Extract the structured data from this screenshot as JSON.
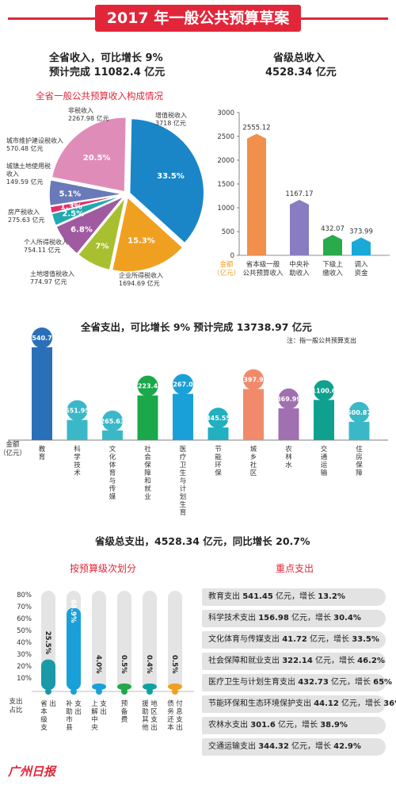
{
  "title": "2017 年一般公共预算草案",
  "income": {
    "line1": "全省收入，可比增长 9%",
    "line2": "预计完成 11082.4 亿元",
    "prov_line1": "省级总收入",
    "prov_line2": "4528.34 亿元"
  },
  "pie_title": "全省一般公共预算收入构成情况",
  "bar1_unit": [
    "金额",
    "（亿元）"
  ],
  "bar2_title": "全省支出，可比增长 9%    预计完成 13738.97 亿元",
  "bar2_note": "注：指一般公共预算支出",
  "bar2_unit": [
    "金额",
    "（亿元）"
  ],
  "prov_exp_title": "省级总支出，4528.34 亿元，同比增长 20.7%",
  "level_title": "按预算级次划分",
  "key_title": "重点支出",
  "level_unit": [
    "支出",
    "占比"
  ],
  "logo": "广州日报",
  "chart_data": [
    {
      "type": "pie",
      "title": "全省一般公共预算收入构成情况",
      "slices": [
        {
          "name": "增值税收入",
          "value": 3718,
          "pct": "33.5%",
          "color": "#1a86c8"
        },
        {
          "name": "企业所得税收入",
          "value": 1694.69,
          "pct": "15.3%",
          "color": "#f0a020"
        },
        {
          "name": "土地增值税收入",
          "value": 774.97,
          "pct": "7%",
          "color": "#a8c030"
        },
        {
          "name": "个人所得税收入",
          "value": 754.11,
          "pct": "6.8%",
          "color": "#a05aa0"
        },
        {
          "name": "房产税收入",
          "value": 275.63,
          "pct": "2.5%",
          "color": "#20aab0"
        },
        {
          "name": "城镇土地使用税收入",
          "value": 149.59,
          "pct": "1.3%",
          "color": "#e0306a"
        },
        {
          "name": "城市维护建设税收入",
          "value": 570.48,
          "pct": "5.1%",
          "color": "#6a7ab8"
        },
        {
          "name": "非税收入",
          "value": 2267.98,
          "pct": "20.5%",
          "color": "#e08cb8"
        }
      ],
      "labels": [
        {
          "line1": "增值税收入",
          "line2": "3718 亿元"
        },
        {
          "line1": "企业所得税收入",
          "line2": "1694.69 亿元"
        },
        {
          "line1": "土地增值税收入",
          "line2": "774.97 亿元"
        },
        {
          "line1": "个人所得税收入",
          "line2": "754.11 亿元"
        },
        {
          "line1": "房产税收入",
          "line2": "275.63 亿元"
        },
        {
          "line1": "城镇土地使用税",
          "line2": "收入",
          "line3": "149.59 亿元"
        },
        {
          "line1": "城市维护建设税收入",
          "line2": "570.48 亿元"
        },
        {
          "line1": "非税收入",
          "line2": "2267.98 亿元"
        }
      ]
    },
    {
      "type": "bar",
      "categories": [
        [
          "省本级一般",
          "公共预算收入"
        ],
        [
          "中央补",
          "助收入"
        ],
        [
          "下级上",
          "缴收入"
        ],
        [
          "调入",
          "资金"
        ]
      ],
      "values": [
        2555.12,
        1167.17,
        432.07,
        373.99
      ],
      "value_labels": [
        "2555.12",
        "1167.17",
        "432.07",
        "373.99"
      ],
      "colors": [
        "#f0904a",
        "#8a7cc0",
        "#2aaa4a",
        "#1aaad8"
      ],
      "ylim": [
        0,
        3000
      ],
      "yticks": [
        "0",
        "500",
        "1000",
        "1500",
        "2000",
        "2500",
        "3000"
      ]
    },
    {
      "type": "bar",
      "categories": [
        "教育",
        "科学技术",
        "文化体育与传媒",
        "社会保障和就业",
        "医疗卫生与计划生育",
        "节能环保",
        "城乡社区",
        "农林水",
        "交通运输",
        "住房保障"
      ],
      "values": [
        2540.75,
        551.95,
        265.63,
        1223.45,
        1267.09,
        345.55,
        1397.96,
        869.99,
        1100.6,
        500.87
      ],
      "value_labels": [
        "2540.75",
        "551.95",
        "265.63",
        "1223.45",
        "1267.09",
        "345.55",
        "1397.96",
        "869.99",
        "1100.6",
        "500.87"
      ],
      "colors": [
        "#2a70b8",
        "#3ab8c8",
        "#3ab8c8",
        "#1aa84a",
        "#1aa0d8",
        "#20b0c0",
        "#f08a6a",
        "#a070b0",
        "#10a090",
        "#3ab8c8"
      ]
    },
    {
      "type": "bar",
      "categories": [
        "省本级支出",
        "补助市县支出",
        "上解中央支出",
        "预备费",
        "援助其他地区支出",
        "债务还本付息支出"
      ],
      "values": [
        25.5,
        68.9,
        4.0,
        0.5,
        0.4,
        0.5
      ],
      "value_labels": [
        "25.5%",
        "68.9%",
        "4.0%",
        "0.5%",
        "0.4%",
        "0.5%"
      ],
      "colors": [
        "#1a9aa8",
        "#1aa0d8",
        "#1aa0d8",
        "#22a84a",
        "#10a0a0",
        "#f0a020"
      ],
      "ylim": [
        0,
        80
      ],
      "yticks": [
        "10%",
        "20%",
        "30%",
        "40%",
        "50%",
        "60%",
        "70%",
        "80%"
      ]
    },
    {
      "type": "table",
      "rows": [
        {
          "name": "教育支出",
          "amount": "541.45",
          "unit": "亿元，增长",
          "growth": "13.2%"
        },
        {
          "name": "科学技术支出",
          "amount": "156.98",
          "unit": "亿元，增长",
          "growth": "30.4%"
        },
        {
          "name": "文化体育与传媒支出",
          "amount": "41.72",
          "unit": "亿元，增长",
          "growth": "33.5%"
        },
        {
          "name": "社会保障和就业支出",
          "amount": "322.14",
          "unit": "亿元，增长",
          "growth": "46.2%"
        },
        {
          "name": "医疗卫生与计划生育支出",
          "amount": "432.73",
          "unit": "亿元，增长",
          "growth": "65%"
        },
        {
          "name": "节能环保和生态环境保护支出",
          "amount": "44.12",
          "unit": "亿元，增长",
          "growth": "36%"
        },
        {
          "name": "农林水支出",
          "amount": "301.6",
          "unit": "亿元，增长",
          "growth": "38.9%"
        },
        {
          "name": "交通运输支出",
          "amount": "344.32",
          "unit": "亿元，增长",
          "growth": "42.9%"
        }
      ]
    }
  ]
}
